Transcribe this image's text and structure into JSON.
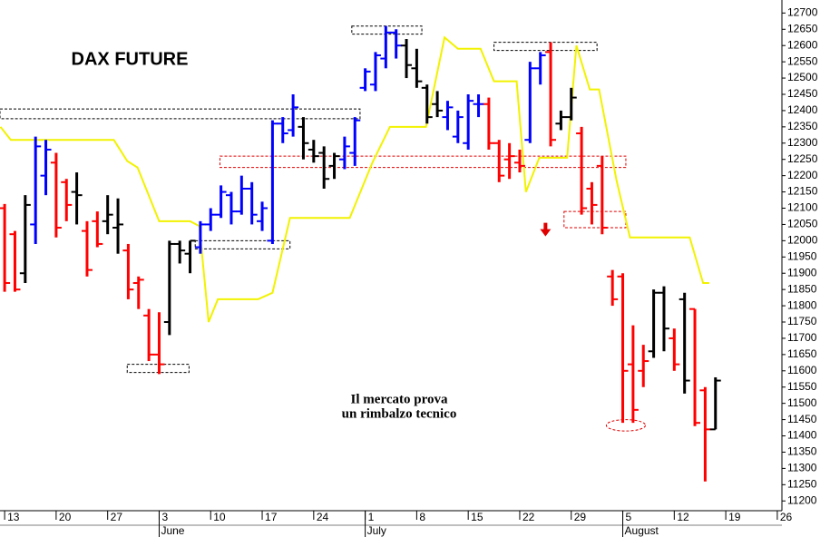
{
  "chart_data": {
    "type": "ohlc",
    "title": "DAX FUTURE",
    "annotation": [
      "Il mercato prova",
      "un rimbalzo tecnico"
    ],
    "x": [
      0,
      1,
      2,
      3,
      4,
      5,
      6,
      7,
      8,
      9,
      10,
      11,
      12,
      13,
      14,
      15,
      16,
      17,
      18,
      19,
      20,
      21,
      22,
      23,
      24,
      25,
      26,
      27,
      28,
      29,
      30,
      31,
      32,
      33,
      34,
      35,
      36,
      37,
      38,
      39,
      40,
      41,
      42,
      43,
      44,
      45,
      46,
      47,
      48,
      49,
      50,
      51,
      52,
      53,
      54,
      55,
      56,
      57,
      58,
      59,
      60,
      61,
      62,
      63,
      64,
      65,
      66,
      67,
      68,
      69
    ],
    "open": [
      12100,
      12020,
      11900,
      12050,
      12200,
      12240,
      12180,
      12150,
      12030,
      12060,
      12060,
      12040,
      11970,
      11870,
      11770,
      11650,
      11750,
      11990,
      11960,
      11980,
      12050,
      12080,
      12140,
      12090,
      12160,
      12060,
      12000,
      12360,
      12340,
      12350,
      12280,
      12270,
      12230,
      12250,
      12270,
      12470,
      12480,
      12560,
      12640,
      12600,
      12530,
      12470,
      12420,
      12380,
      12320,
      12300,
      12420,
      12420,
      12300,
      12250,
      12240,
      12310,
      12530,
      12580,
      12360,
      12380,
      12330,
      12160,
      12230,
      11890,
      11890,
      11620,
      11600,
      11660,
      11840,
      11700,
      11820,
      11790,
      11540,
      11420
    ],
    "high": [
      12113,
      12030,
      12140,
      12320,
      12310,
      12270,
      12190,
      12210,
      12060,
      12090,
      12140,
      12130,
      11990,
      11890,
      11790,
      11780,
      12000,
      12000,
      12000,
      12060,
      12100,
      12170,
      12150,
      12200,
      12180,
      12120,
      12370,
      12380,
      12450,
      12380,
      12310,
      12290,
      12270,
      12320,
      12380,
      12530,
      12580,
      12660,
      12650,
      12620,
      12590,
      12480,
      12460,
      12430,
      12400,
      12450,
      12450,
      12440,
      12310,
      12300,
      12280,
      12550,
      12580,
      12610,
      12400,
      12470,
      12350,
      12180,
      12260,
      11910,
      11900,
      11740,
      11680,
      11850,
      11860,
      11730,
      11840,
      11790,
      11550,
      11580
    ],
    "low": [
      11843,
      11843,
      11870,
      11990,
      12140,
      12010,
      12060,
      12050,
      11890,
      11980,
      12020,
      11960,
      11820,
      11790,
      11630,
      11590,
      11710,
      11930,
      11900,
      11960,
      12030,
      12070,
      12050,
      12080,
      12050,
      12030,
      11990,
      12300,
      12320,
      12250,
      12240,
      12160,
      12190,
      12220,
      12230,
      12460,
      12460,
      12530,
      12560,
      12500,
      12470,
      12360,
      12380,
      12340,
      12300,
      12280,
      12380,
      12280,
      12180,
      12190,
      12210,
      12300,
      12480,
      12290,
      12340,
      12370,
      12080,
      12050,
      12020,
      11800,
      11440,
      11440,
      11550,
      11640,
      11660,
      11600,
      11530,
      11430,
      11260,
      11420
    ],
    "close": [
      11870,
      11850,
      12110,
      12290,
      12280,
      12040,
      12110,
      12140,
      11910,
      11990,
      12080,
      12050,
      11850,
      11880,
      11650,
      11620,
      11990,
      11970,
      12000,
      12050,
      12080,
      12150,
      12090,
      12160,
      12080,
      12100,
      12360,
      12330,
      12410,
      12300,
      12260,
      12190,
      12260,
      12290,
      12370,
      12520,
      12570,
      12640,
      12600,
      12540,
      12490,
      12380,
      12400,
      12410,
      12380,
      12430,
      12420,
      12300,
      12200,
      12260,
      12230,
      12530,
      12570,
      12310,
      12380,
      12440,
      12100,
      12110,
      12040,
      11820,
      11600,
      11480,
      11630,
      11840,
      11730,
      11620,
      11570,
      11440,
      11420,
      11570
    ],
    "bar_colors": [
      "red",
      "red",
      "black",
      "blue",
      "blue",
      "red",
      "red",
      "black",
      "red",
      "red",
      "black",
      "black",
      "red",
      "red",
      "red",
      "red",
      "black",
      "black",
      "black",
      "blue",
      "blue",
      "blue",
      "blue",
      "blue",
      "blue",
      "blue",
      "blue",
      "blue",
      "blue",
      "black",
      "black",
      "black",
      "black",
      "blue",
      "blue",
      "blue",
      "blue",
      "blue",
      "blue",
      "black",
      "black",
      "black",
      "black",
      "blue",
      "blue",
      "blue",
      "blue",
      "red",
      "red",
      "red",
      "red",
      "blue",
      "blue",
      "red",
      "black",
      "black",
      "red",
      "red",
      "red",
      "red",
      "red",
      "red",
      "red",
      "black",
      "black",
      "red",
      "black",
      "red",
      "red",
      "black"
    ],
    "line": {
      "color": "#f2f200",
      "x": [
        -0.4,
        0.6,
        10.6,
        11.9,
        12.9,
        15,
        18,
        18.9,
        19.8,
        20.7,
        24.6,
        26,
        27.7,
        33.5,
        35.7,
        37.4,
        40.9,
        42.7,
        44,
        46.2,
        47.5,
        49.7,
        50.6,
        51.9,
        54.6,
        55.5,
        56.8,
        57.7,
        59.4,
        60.7,
        66.5,
        67.8,
        68.4
      ],
      "values": [
        12350,
        12310,
        12310,
        12245,
        12225,
        12060,
        12060,
        12045,
        11750,
        11820,
        11820,
        11840,
        12070,
        12070,
        12240,
        12350,
        12350,
        12625,
        12590,
        12590,
        12490,
        12490,
        12150,
        12255,
        12255,
        12600,
        12465,
        12465,
        12185,
        12010,
        12010,
        11870,
        11870
      ]
    },
    "zones": [
      {
        "shape": "rect",
        "color": "#000000",
        "x": [
          -0.45,
          34.5
        ],
        "y": [
          12375,
          12405
        ]
      },
      {
        "shape": "rect",
        "color": "#000000",
        "x": [
          11.9,
          17.9
        ],
        "y": [
          11595,
          11620
        ]
      },
      {
        "shape": "rect",
        "color": "#000000",
        "x": [
          18.5,
          27.7
        ],
        "y": [
          11975,
          12000
        ]
      },
      {
        "shape": "rect",
        "color": "#000000",
        "x": [
          33.7,
          40.5
        ],
        "y": [
          12635,
          12660
        ]
      },
      {
        "shape": "rect",
        "color": "#000000",
        "x": [
          47.5,
          57.5
        ],
        "y": [
          12585,
          12610
        ]
      },
      {
        "shape": "rect",
        "color": "#e00000",
        "x": [
          20.9,
          60.3
        ],
        "y": [
          12225,
          12260
        ]
      },
      {
        "shape": "rect",
        "color": "#e00000",
        "x": [
          54.3,
          60.3
        ],
        "y": [
          12040,
          12090
        ]
      },
      {
        "shape": "ellipse",
        "color": "#e00000",
        "x": [
          58.4,
          62.2
        ],
        "y": [
          11415,
          11450
        ]
      }
    ],
    "arrow": {
      "x": 52.5,
      "y": 12030,
      "color": "#e00000"
    },
    "xlim": [
      -0.45,
      75.45
    ],
    "xticks": [
      {
        "value": 0,
        "label": "13"
      },
      {
        "value": 5,
        "label": "20"
      },
      {
        "value": 10,
        "label": "27"
      },
      {
        "value": 15,
        "label": "3"
      },
      {
        "value": 20,
        "label": "10"
      },
      {
        "value": 25,
        "label": "17"
      },
      {
        "value": 30,
        "label": "24"
      },
      {
        "value": 35,
        "label": "1"
      },
      {
        "value": 40,
        "label": "8"
      },
      {
        "value": 45,
        "label": "15"
      },
      {
        "value": 50,
        "label": "22"
      },
      {
        "value": 55,
        "label": "29"
      },
      {
        "value": 60,
        "label": "5"
      },
      {
        "value": 65,
        "label": "12"
      },
      {
        "value": 70,
        "label": "19"
      },
      {
        "value": 75,
        "label": "26"
      }
    ],
    "x_month_labels": [
      {
        "value": 15,
        "label": "June"
      },
      {
        "value": 35,
        "label": "July"
      },
      {
        "value": 60,
        "label": "August"
      }
    ],
    "ylim": [
      11170,
      12740
    ],
    "yticks": [
      11200,
      11250,
      11300,
      11350,
      11400,
      11450,
      11500,
      11550,
      11600,
      11650,
      11700,
      11750,
      11800,
      11850,
      11900,
      11950,
      12000,
      12050,
      12100,
      12150,
      12200,
      12250,
      12300,
      12350,
      12400,
      12450,
      12500,
      12550,
      12600,
      12650,
      12700
    ],
    "grid": false
  }
}
